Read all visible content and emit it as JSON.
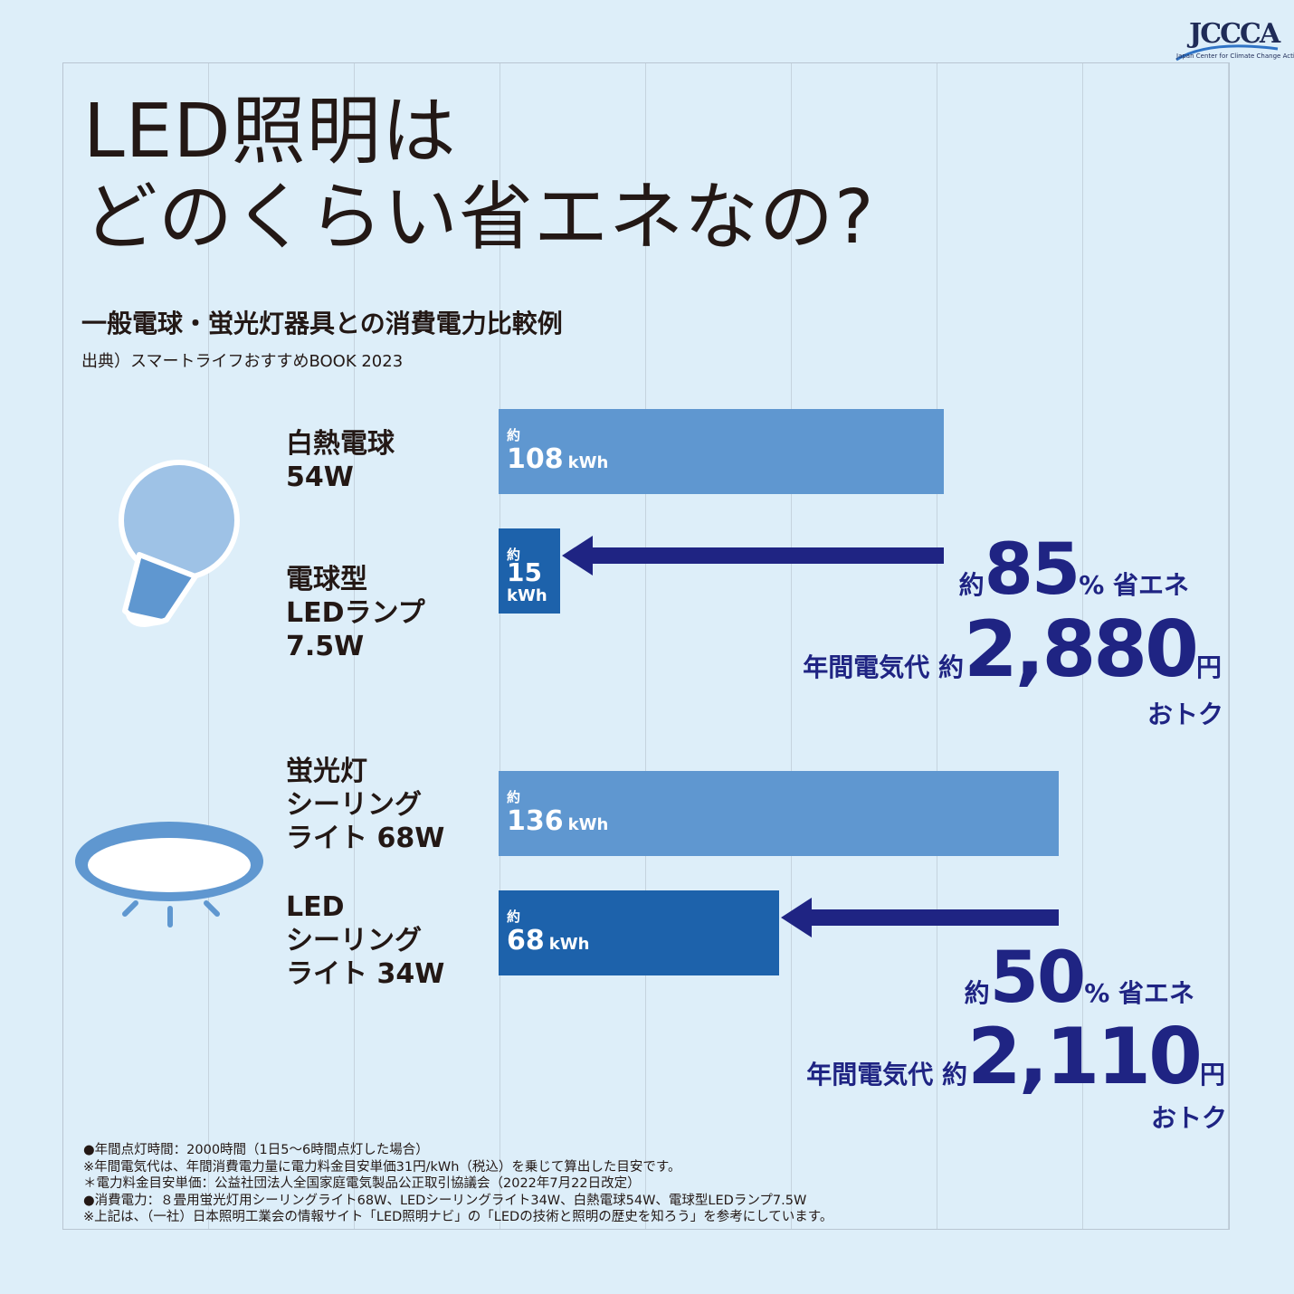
{
  "logo": {
    "mark": "JCCCA",
    "sub": "Japan Center for Climate Change Actions"
  },
  "title_line1": "LED照明は",
  "title_line2": "どのくらい省エネなの?",
  "subtitle": "一般電球・蛍光灯器具との消費電力比較例",
  "source": "出典）スマートライフおすすめBOOK 2023",
  "colors": {
    "bar_old": "#5f97d0",
    "bar_led": "#1d62ab",
    "accent": "#1f2483",
    "background": "#ddeef9"
  },
  "chart_data": {
    "type": "bar",
    "orientation": "horizontal",
    "unit": "kWh",
    "approx_prefix": "約",
    "categories": [
      "白熱電球 54W",
      "電球型LEDランプ 7.5W",
      "蛍光灯シーリングライト 68W",
      "LEDシーリングライト 34W"
    ],
    "values": [
      108,
      15,
      136,
      68
    ],
    "xlim": [
      0,
      160
    ]
  },
  "bars": [
    {
      "label": "白熱電球\n54W",
      "approx": "約",
      "value": "108",
      "unit": "kWh"
    },
    {
      "label": "電球型\nLEDランプ\n7.5W",
      "approx": "約",
      "value": "15",
      "unit": "kWh"
    },
    {
      "label": "蛍光灯\nシーリング\nライト 68W",
      "approx": "約",
      "value": "136",
      "unit": "kWh"
    },
    {
      "label": "LED\nシーリング\nライト 34W",
      "approx": "約",
      "value": "68",
      "unit": "kWh"
    }
  ],
  "savings": [
    {
      "prefix": "約",
      "percent": "85",
      "pct_suffix": "% 省エネ",
      "cost_label": "年間電気代 約",
      "cost": "2,880",
      "yen": "円",
      "otoku": "おトク"
    },
    {
      "prefix": "約",
      "percent": "50",
      "pct_suffix": "% 省エネ",
      "cost_label": "年間電気代 約",
      "cost": "2,110",
      "yen": "円",
      "otoku": "おトク"
    }
  ],
  "notes": [
    "●年間点灯時間：2000時間（1日5～6時間点灯した場合）",
    "※年間電気代は、年間消費電力量に電力料金目安単価31円/kWh（税込）を乗じて算出した目安です。",
    "＊電力料金目安単価：公益社団法人全国家庭電気製品公正取引協議会（2022年7月22日改定）",
    "●消費電力：８畳用蛍光灯用シーリングライト68W、LEDシーリングライト34W、白熱電球54W、電球型LEDランプ7.5W",
    "※上記は、（一社）日本照明工業会の情報サイト「LED照明ナビ」の「LEDの技術と照明の歴史を知ろう」を参考にしています。"
  ]
}
